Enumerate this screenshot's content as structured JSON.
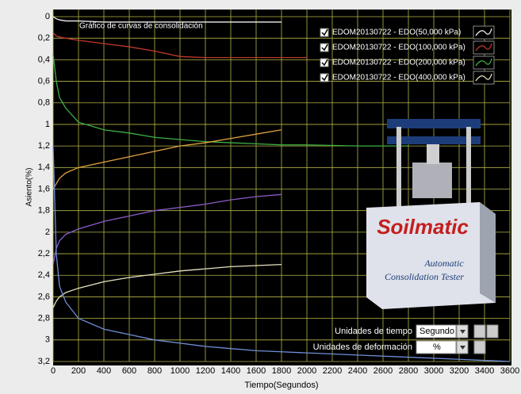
{
  "chart_data": {
    "type": "line",
    "title": "Gráfico de curvas de consolidación",
    "x_label": "Tiempo(Segundos)",
    "y_label": "Asiento(%)",
    "x": [
      0,
      25,
      50,
      100,
      200,
      400,
      600,
      800,
      1000,
      1200,
      1400,
      1600,
      1800,
      2000,
      2400,
      2800,
      3200,
      3600
    ],
    "series": [
      {
        "name": "EDOM20130722 - EDO(50,000 kPa)",
        "color": "#f0f0f0",
        "values": [
          0,
          0.02,
          0.03,
          0.04,
          0.04,
          0.05,
          0.05,
          0.05,
          0.05,
          0.05,
          0.05,
          0.05,
          0.05,
          null,
          null,
          null,
          null,
          null
        ]
      },
      {
        "name": "EDOM20130722 - EDO(100,000 kPa)",
        "color": "#c0392b",
        "values": [
          0.15,
          0.18,
          0.19,
          0.2,
          0.22,
          0.25,
          0.28,
          0.32,
          0.37,
          0.38,
          0.38,
          0.38,
          0.38,
          0.38,
          null,
          null,
          null,
          null
        ]
      },
      {
        "name": "EDOM20130722 - EDO(200,000 kPa)",
        "color": "#3cb043",
        "values": [
          0.35,
          0.6,
          0.75,
          0.85,
          0.98,
          1.05,
          1.08,
          1.12,
          1.14,
          1.16,
          1.17,
          1.18,
          1.19,
          1.19,
          1.2,
          1.2,
          null,
          null
        ]
      },
      {
        "name": "EDOM20130722 - EDO(400,000 kPa)",
        "color": "#e6e2c0",
        "values": [
          2.7,
          2.64,
          2.6,
          2.56,
          2.52,
          2.46,
          2.42,
          2.39,
          2.36,
          2.34,
          2.32,
          2.31,
          2.3,
          null,
          null,
          null,
          null,
          null
        ]
      },
      {
        "color": "#e0a040",
        "values": [
          1.6,
          1.55,
          1.5,
          1.45,
          1.4,
          1.35,
          1.3,
          1.25,
          1.2,
          1.17,
          1.13,
          1.09,
          1.05,
          null,
          null,
          null,
          null,
          null
        ]
      },
      {
        "color": "#8a5cc8",
        "values": [
          2.3,
          2.15,
          2.08,
          2.02,
          1.97,
          1.9,
          1.85,
          1.8,
          1.77,
          1.74,
          1.7,
          1.67,
          1.65,
          null,
          null,
          null,
          null,
          null
        ]
      },
      {
        "color": "#6f8fd8",
        "values": [
          1.2,
          2.2,
          2.5,
          2.65,
          2.8,
          2.9,
          2.95,
          3.0,
          3.03,
          3.06,
          3.08,
          3.1,
          3.11,
          3.12,
          3.14,
          3.16,
          3.18,
          3.2
        ]
      }
    ],
    "xlim": [
      0,
      3600
    ],
    "xticks": [
      0,
      200,
      400,
      600,
      800,
      1000,
      1200,
      1400,
      1600,
      1800,
      2000,
      2200,
      2400,
      2600,
      2800,
      3000,
      3200,
      3400,
      3600
    ],
    "ylim": [
      0,
      3.2
    ],
    "y_inverted": true,
    "yticks": [
      0,
      {
        "value": 0.2,
        "label": "0,2"
      },
      {
        "value": 0.4,
        "label": "0,4"
      },
      {
        "value": 0.6,
        "label": "0,6"
      },
      {
        "value": 0.8,
        "label": "0,8"
      },
      1,
      {
        "value": 1.2,
        "label": "1,2"
      },
      {
        "value": 1.4,
        "label": "1,4"
      },
      {
        "value": 1.6,
        "label": "1,6"
      },
      {
        "value": 1.8,
        "label": "1,8"
      },
      2,
      {
        "value": 2.2,
        "label": "2,2"
      },
      {
        "value": 2.4,
        "label": "2,4"
      },
      {
        "value": 2.6,
        "label": "2,6"
      },
      {
        "value": 2.8,
        "label": "2,8"
      },
      3,
      {
        "value": 3.2,
        "label": "3,2"
      }
    ],
    "grid": true,
    "grid_color": "#b4b44a",
    "background": "#000000",
    "legend": "top-right"
  },
  "controls": {
    "time_units_label": "Unidades de tiempo",
    "time_units": "Segundo",
    "deformation_units_label": "Unidades de deformación",
    "deformation_units": "%"
  },
  "overlay": {
    "brand": "Soilmatic",
    "caption_line_1": "Automatic",
    "caption_line_2": "Consolidation Tester"
  }
}
